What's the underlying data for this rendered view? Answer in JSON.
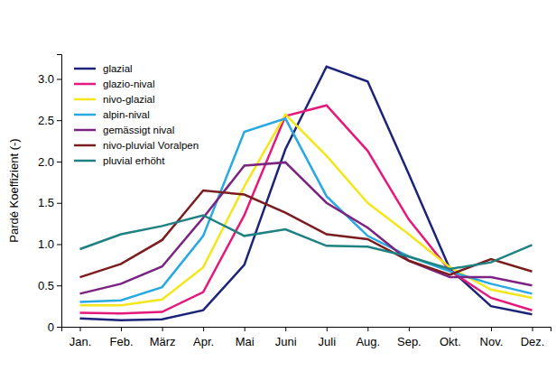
{
  "chart_data": {
    "type": "line",
    "y_label": "Pardé Koeffizient (-)",
    "categories": [
      "Jan.",
      "Feb.",
      "März",
      "Apr.",
      "Mai",
      "Juni",
      "Juli",
      "Aug.",
      "Sep.",
      "Okt.",
      "Nov.",
      "Dez."
    ],
    "series": [
      {
        "name": "glazial",
        "color": "#1c2479",
        "values": [
          0.1,
          0.08,
          0.09,
          0.2,
          0.75,
          2.15,
          3.15,
          2.97,
          1.85,
          0.7,
          0.25,
          0.15
        ]
      },
      {
        "name": "glazio-nival",
        "color": "#e5197b",
        "values": [
          0.17,
          0.16,
          0.18,
          0.42,
          1.35,
          2.55,
          2.68,
          2.13,
          1.3,
          0.68,
          0.35,
          0.2
        ]
      },
      {
        "name": "nivo-glazial",
        "color": "#f4e61c",
        "values": [
          0.26,
          0.26,
          0.33,
          0.72,
          1.7,
          2.57,
          2.07,
          1.5,
          1.12,
          0.72,
          0.45,
          0.35
        ]
      },
      {
        "name": "alpin-nival",
        "color": "#29a9e1",
        "values": [
          0.3,
          0.32,
          0.48,
          1.1,
          2.36,
          2.52,
          1.58,
          1.1,
          0.85,
          0.67,
          0.52,
          0.4
        ]
      },
      {
        "name": "gemässigt nival",
        "color": "#7c2381",
        "values": [
          0.4,
          0.52,
          0.73,
          1.32,
          1.95,
          1.99,
          1.5,
          1.2,
          0.8,
          0.6,
          0.6,
          0.5
        ]
      },
      {
        "name": "nivo-pluvial Voralpen",
        "color": "#7b1d1f",
        "values": [
          0.6,
          0.76,
          1.05,
          1.65,
          1.6,
          1.38,
          1.12,
          1.06,
          0.8,
          0.63,
          0.82,
          0.67
        ]
      },
      {
        "name": "pluvial erhöht",
        "color": "#1f8182",
        "values": [
          0.94,
          1.12,
          1.22,
          1.35,
          1.1,
          1.18,
          0.98,
          0.97,
          0.85,
          0.7,
          0.78,
          0.99
        ]
      }
    ],
    "ylim": [
      0,
      3.3
    ],
    "yticks": [
      0,
      0.5,
      {
        "value": 1,
        "label": "1.0"
      },
      1.5,
      {
        "value": 2,
        "label": "2.0"
      },
      2.5,
      {
        "value": 3,
        "label": "3.0"
      }
    ],
    "grid": false,
    "legend": "upper left"
  }
}
